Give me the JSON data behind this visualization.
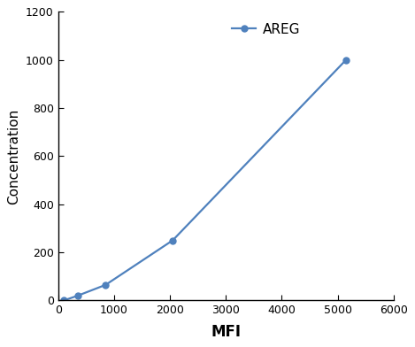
{
  "x": [
    100,
    350,
    850,
    2050,
    5150
  ],
  "y": [
    0,
    20,
    65,
    250,
    1000
  ],
  "line_color": "#4F81BD",
  "marker_style": "o",
  "marker_size": 5,
  "line_width": 1.6,
  "xlabel": "MFI",
  "ylabel": "Concentration",
  "legend_label": "AREG",
  "xlim": [
    0,
    6000
  ],
  "ylim": [
    0,
    1200
  ],
  "xticks": [
    0,
    1000,
    2000,
    3000,
    4000,
    5000,
    6000
  ],
  "yticks": [
    0,
    200,
    400,
    600,
    800,
    1000,
    1200
  ],
  "xlabel_fontsize": 12,
  "ylabel_fontsize": 11,
  "tick_fontsize": 9,
  "legend_fontsize": 11,
  "background_color": "#ffffff",
  "spine_color": "#000000"
}
